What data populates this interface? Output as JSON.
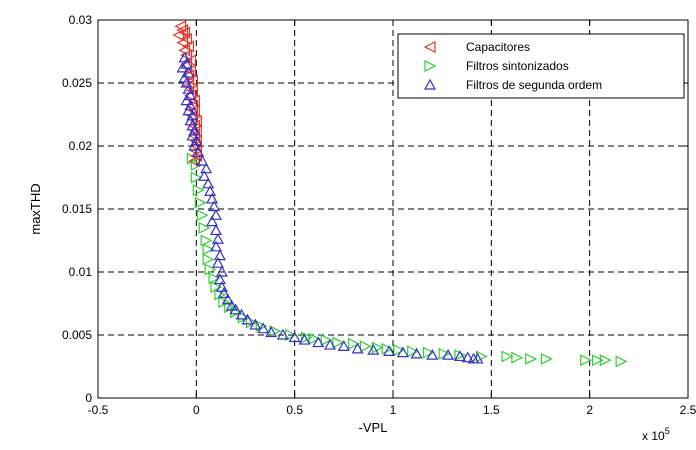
{
  "chart_data": {
    "type": "scatter",
    "xlabel": "-VPL",
    "ylabel": "maxTHD",
    "x_exponent_label": "x 10",
    "x_exponent_power": "5",
    "xlim": [
      -0.5,
      2.5
    ],
    "ylim": [
      0,
      0.03
    ],
    "x_ticks": [
      "-0.5",
      "0",
      "0.5",
      "1",
      "1.5",
      "2",
      "2.5"
    ],
    "y_ticks": [
      "0",
      "0.005",
      "0.01",
      "0.015",
      "0.02",
      "0.025",
      "0.03"
    ],
    "grid": true,
    "legend_position": "top-right",
    "series": [
      {
        "name": "Capacitores",
        "marker": "triangle-left",
        "color": "#e8312a",
        "points": [
          [
            -0.08,
            0.0295
          ],
          [
            -0.07,
            0.0292
          ],
          [
            -0.06,
            0.029
          ],
          [
            -0.09,
            0.0288
          ],
          [
            -0.05,
            0.0285
          ],
          [
            -0.07,
            0.0282
          ],
          [
            -0.04,
            0.0279
          ],
          [
            -0.06,
            0.0276
          ],
          [
            -0.05,
            0.0272
          ],
          [
            -0.03,
            0.0268
          ],
          [
            -0.05,
            0.0264
          ],
          [
            -0.03,
            0.026
          ],
          [
            -0.04,
            0.0256
          ],
          [
            -0.02,
            0.0252
          ],
          [
            -0.04,
            0.0248
          ],
          [
            -0.02,
            0.0244
          ],
          [
            -0.03,
            0.024
          ],
          [
            -0.01,
            0.0236
          ],
          [
            -0.02,
            0.0232
          ],
          [
            -0.01,
            0.0228
          ],
          [
            -0.02,
            0.0224
          ],
          [
            0.0,
            0.022
          ],
          [
            -0.01,
            0.0216
          ],
          [
            0.0,
            0.0212
          ],
          [
            -0.01,
            0.0208
          ],
          [
            0.0,
            0.0204
          ],
          [
            0.0,
            0.02
          ],
          [
            0.0,
            0.0196
          ],
          [
            0.0,
            0.0192
          ],
          [
            -0.01,
            0.0188
          ]
        ]
      },
      {
        "name": "Filtros sintonizados",
        "marker": "triangle-right",
        "color": "#2fcf2f",
        "points": [
          [
            -0.02,
            0.019
          ],
          [
            0.0,
            0.0185
          ],
          [
            0.0,
            0.0175
          ],
          [
            0.01,
            0.0165
          ],
          [
            0.02,
            0.0155
          ],
          [
            0.03,
            0.0145
          ],
          [
            0.04,
            0.0135
          ],
          [
            0.05,
            0.0125
          ],
          [
            0.06,
            0.0118
          ],
          [
            0.06,
            0.011
          ],
          [
            0.07,
            0.0102
          ],
          [
            0.09,
            0.0095
          ],
          [
            0.1,
            0.0088
          ],
          [
            0.12,
            0.0082
          ],
          [
            0.14,
            0.0076
          ],
          [
            0.17,
            0.0072
          ],
          [
            0.2,
            0.0068
          ],
          [
            0.24,
            0.0064
          ],
          [
            0.28,
            0.006
          ],
          [
            0.33,
            0.0057
          ],
          [
            0.4,
            0.0053
          ],
          [
            0.48,
            0.005
          ],
          [
            0.56,
            0.0048
          ],
          [
            0.6,
            0.0047
          ],
          [
            0.66,
            0.0046
          ],
          [
            0.72,
            0.0044
          ],
          [
            0.8,
            0.0043
          ],
          [
            0.86,
            0.0041
          ],
          [
            0.92,
            0.004
          ],
          [
            0.97,
            0.0039
          ],
          [
            1.03,
            0.0038
          ],
          [
            1.1,
            0.0037
          ],
          [
            1.18,
            0.0036
          ],
          [
            1.26,
            0.0035
          ],
          [
            1.34,
            0.0034
          ],
          [
            1.45,
            0.0033
          ],
          [
            1.58,
            0.0033
          ],
          [
            1.63,
            0.0032
          ],
          [
            1.7,
            0.0031
          ],
          [
            1.78,
            0.0031
          ],
          [
            1.98,
            0.003
          ],
          [
            2.04,
            0.003
          ],
          [
            2.08,
            0.003
          ],
          [
            2.16,
            0.0029
          ]
        ]
      },
      {
        "name": "Filtros de segunda ordem",
        "marker": "triangle-up",
        "color": "#3232c8",
        "points": [
          [
            -0.06,
            0.027
          ],
          [
            -0.05,
            0.0265
          ],
          [
            -0.07,
            0.0262
          ],
          [
            -0.04,
            0.0258
          ],
          [
            -0.06,
            0.0254
          ],
          [
            -0.05,
            0.025
          ],
          [
            -0.04,
            0.0245
          ],
          [
            -0.03,
            0.024
          ],
          [
            -0.05,
            0.0236
          ],
          [
            -0.03,
            0.0232
          ],
          [
            -0.04,
            0.0228
          ],
          [
            -0.02,
            0.0224
          ],
          [
            -0.03,
            0.022
          ],
          [
            -0.02,
            0.0216
          ],
          [
            -0.01,
            0.0212
          ],
          [
            -0.02,
            0.0208
          ],
          [
            0.0,
            0.0204
          ],
          [
            -0.01,
            0.02
          ],
          [
            0.01,
            0.0195
          ],
          [
            0.03,
            0.0188
          ],
          [
            0.05,
            0.0182
          ],
          [
            0.04,
            0.0176
          ],
          [
            0.06,
            0.017
          ],
          [
            0.07,
            0.0164
          ],
          [
            0.08,
            0.0158
          ],
          [
            0.09,
            0.0152
          ],
          [
            0.1,
            0.0145
          ],
          [
            0.08,
            0.014
          ],
          [
            0.1,
            0.0133
          ],
          [
            0.11,
            0.0126
          ],
          [
            0.1,
            0.012
          ],
          [
            0.12,
            0.0113
          ],
          [
            0.11,
            0.0107
          ],
          [
            0.13,
            0.01
          ],
          [
            0.12,
            0.0094
          ],
          [
            0.13,
            0.0088
          ],
          [
            0.14,
            0.0083
          ],
          [
            0.16,
            0.0078
          ],
          [
            0.18,
            0.0073
          ],
          [
            0.2,
            0.007
          ],
          [
            0.23,
            0.0066
          ],
          [
            0.26,
            0.0062
          ],
          [
            0.3,
            0.0058
          ],
          [
            0.34,
            0.0055
          ],
          [
            0.38,
            0.0052
          ],
          [
            0.44,
            0.005
          ],
          [
            0.5,
            0.0048
          ],
          [
            0.55,
            0.0046
          ],
          [
            0.62,
            0.0044
          ],
          [
            0.68,
            0.0042
          ],
          [
            0.75,
            0.0041
          ],
          [
            0.82,
            0.0039
          ],
          [
            0.9,
            0.0038
          ],
          [
            0.98,
            0.0037
          ],
          [
            1.05,
            0.0036
          ],
          [
            1.12,
            0.0035
          ],
          [
            1.2,
            0.0034
          ],
          [
            1.28,
            0.0034
          ],
          [
            1.34,
            0.0033
          ],
          [
            1.38,
            0.0032
          ],
          [
            1.41,
            0.0031
          ],
          [
            1.43,
            0.0031
          ]
        ]
      }
    ]
  }
}
